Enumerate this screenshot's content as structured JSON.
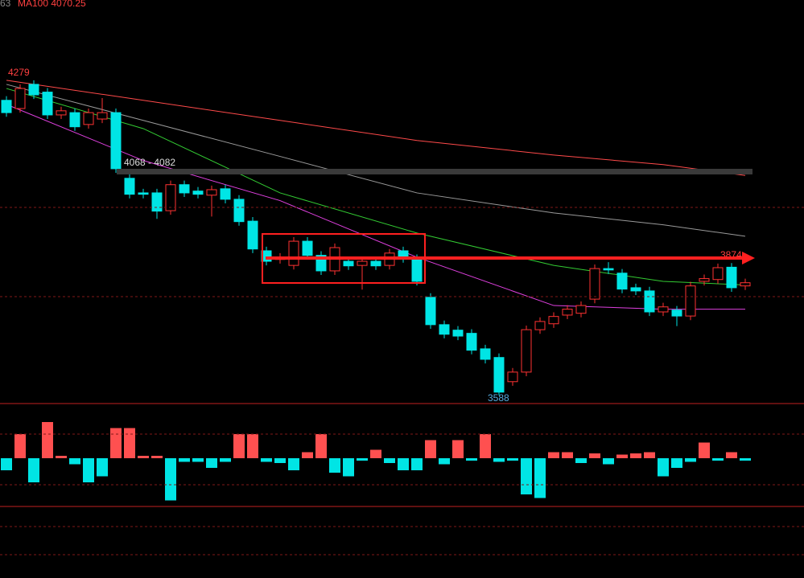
{
  "header": {
    "code": "63",
    "ma100": "MA100 4070.25"
  },
  "annotations": {
    "high": "4279",
    "low": "3588",
    "zone": "4068 - 4082",
    "target": "3874"
  },
  "chart_data": [
    {
      "type": "candlestick",
      "up_color": "#ff3232",
      "down_color": "#00e5e5",
      "ylim": [
        3570,
        4455
      ],
      "open": [
        4235,
        4217,
        4270,
        4253,
        4203,
        4208,
        4182,
        4194,
        4208,
        4064,
        4032,
        4032,
        3993,
        4050,
        4036,
        4027,
        4041,
        4018,
        3970,
        3905,
        3886,
        3873,
        3926,
        3895,
        3861,
        3882,
        3873,
        3882,
        3873,
        3905,
        3888,
        3803,
        3743,
        3731,
        3724,
        3690,
        3671,
        3618,
        3639,
        3732,
        3745,
        3764,
        3768,
        3799,
        3866,
        3856,
        3824,
        3817,
        3771,
        3775,
        3762,
        3838,
        3842,
        3869,
        3828
      ],
      "high": [
        4244,
        4270,
        4279,
        4262,
        4221,
        4217,
        4217,
        4240,
        4217,
        4073,
        4041,
        4041,
        4059,
        4059,
        4045,
        4048,
        4050,
        4027,
        3979,
        3914,
        3900,
        3935,
        3935,
        3904,
        3921,
        3891,
        3891,
        3891,
        3909,
        3914,
        3897,
        3812,
        3752,
        3740,
        3733,
        3699,
        3680,
        3648,
        3741,
        3759,
        3770,
        3786,
        3794,
        3875,
        3880,
        3865,
        3833,
        3826,
        3791,
        3784,
        3837,
        3853,
        3877,
        3878,
        3844
      ],
      "low": [
        4199,
        4208,
        4238,
        4194,
        4194,
        4168,
        4173,
        4185,
        4076,
        4020,
        4020,
        3975,
        3984,
        4023,
        4020,
        3980,
        4009,
        3960,
        3900,
        3873,
        3877,
        3864,
        3886,
        3852,
        3852,
        3863,
        3820,
        3863,
        3864,
        3879,
        3829,
        3734,
        3713,
        3709,
        3678,
        3658,
        3588,
        3609,
        3630,
        3723,
        3736,
        3755,
        3759,
        3790,
        3854,
        3812,
        3808,
        3762,
        3762,
        3740,
        3753,
        3829,
        3833,
        3815,
        3819
      ],
      "close": [
        4208,
        4261,
        4247,
        4203,
        4212,
        4177,
        4208,
        4208,
        4085,
        4029,
        4029,
        3992,
        4050,
        4032,
        4029,
        4039,
        4018,
        3969,
        3909,
        3882,
        3891,
        3926,
        3895,
        3861,
        3912,
        3872,
        3882,
        3872,
        3900,
        3888,
        3838,
        3743,
        3722,
        3718,
        3687,
        3667,
        3595,
        3639,
        3732,
        3750,
        3761,
        3777,
        3785,
        3866,
        3863,
        3821,
        3817,
        3771,
        3782,
        3762,
        3828,
        3844,
        3868,
        3824,
        3835
      ],
      "lines": [
        {
          "color": "#ff4a4a",
          "x": [
            0,
            10,
            20,
            30,
            40,
            48,
            54
          ],
          "values": [
            4279,
            4235,
            4191,
            4147,
            4115,
            4094,
            4070.25
          ]
        },
        {
          "color": "#9a9a9a",
          "x": [
            0,
            10,
            20,
            30,
            40,
            48,
            54
          ],
          "values": [
            4270,
            4191,
            4112,
            4032,
            3988,
            3962,
            3937
          ]
        },
        {
          "color": "#33cc33",
          "x": [
            0,
            10,
            20,
            30,
            40,
            48,
            54
          ],
          "values": [
            4261,
            4173,
            4032,
            3944,
            3873,
            3838,
            3830
          ]
        },
        {
          "color": "#e040e0",
          "x": [
            0,
            10,
            20,
            30,
            40,
            48,
            54
          ],
          "values": [
            4226,
            4103,
            4015,
            3891,
            3785,
            3777,
            3777
          ]
        }
      ]
    },
    {
      "type": "bar",
      "pos_color": "#ff5050",
      "neg_color": "#00e5e5",
      "ylim": [
        -4,
        4
      ],
      "values": [
        -1,
        2,
        -2,
        3,
        0.2,
        -0.5,
        -2,
        -1.5,
        2.5,
        2.5,
        0.2,
        0.2,
        -3.5,
        -0.3,
        -0.3,
        -0.8,
        -0.3,
        2,
        2,
        -0.3,
        -0.4,
        -1,
        0.5,
        2,
        -1.2,
        -1.5,
        -0.2,
        0.7,
        -0.4,
        -1,
        -1,
        1.5,
        -0.5,
        1.5,
        -0.2,
        2,
        -0.3,
        -0.2,
        -3,
        -3.3,
        0.5,
        0.5,
        -0.4,
        0.4,
        -0.5,
        0.3,
        0.4,
        0.5,
        -1.5,
        -0.8,
        -0.3,
        1.3,
        -0.2,
        0.5,
        -0.2
      ]
    }
  ]
}
